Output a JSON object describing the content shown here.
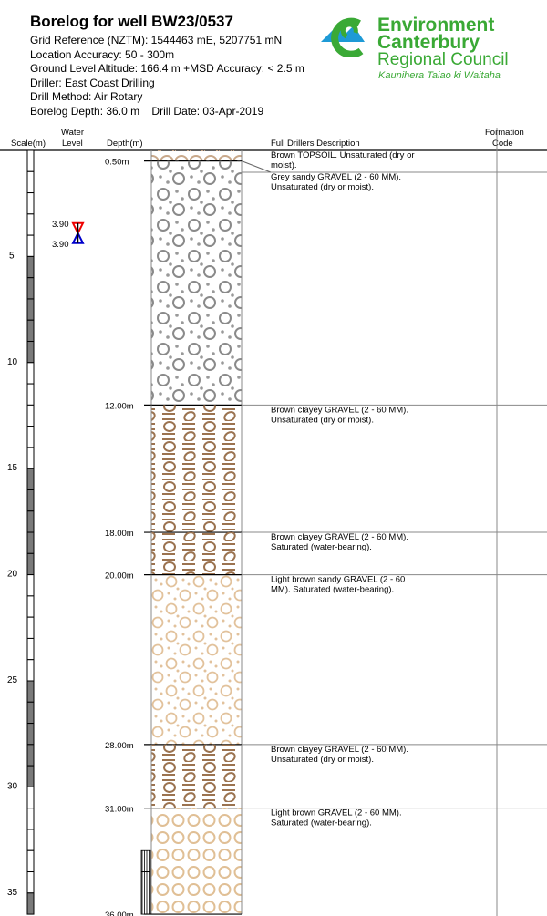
{
  "header": {
    "title": "Borelog for well BW23/0537",
    "grid_reference": "Grid Reference (NZTM):  1544463 mE, 5207751 mN",
    "location_accuracy": "Location Accuracy:  50 - 300m",
    "ground_level": "Ground Level Altitude:  166.4 m +MSD Accuracy: < 2.5 m",
    "driller": "Driller:  East Coast Drilling",
    "drill_method": "Drill Method:  Air Rotary",
    "borelog_depth": "Borelog Depth:  36.0 m",
    "drill_date": "Drill Date:  03-Apr-2019"
  },
  "logo": {
    "line1": "Environment",
    "line2": "Canterbury",
    "line3": "Regional Council",
    "tagline": "Kaunihera Taiao ki Waitaha",
    "green": "#3aa935",
    "blue": "#1e9ad6"
  },
  "columns": {
    "scale": "Scale(m)",
    "water_level_1": "Water",
    "water_level_2": "Level",
    "depth": "Depth(m)",
    "description": "Full Drillers Description",
    "formation_1": "Formation",
    "formation_2": "Code"
  },
  "scale_labels": [
    "5",
    "10",
    "15",
    "20",
    "25",
    "30",
    "35"
  ],
  "water_level": {
    "top": "3.90",
    "bottom": "3.90",
    "depth_m": 3.9
  },
  "screen": {
    "from_m": 33,
    "to_m": 36
  },
  "layers": [
    {
      "bottom_label": "0.50m",
      "top_m": 0,
      "bottom_m": 0.5,
      "pattern": "topsoil",
      "desc": [
        "Brown TOPSOIL. Unsaturated (dry or",
        "moist)."
      ]
    },
    {
      "bottom_label": "12.00m",
      "top_m": 0.5,
      "bottom_m": 12,
      "pattern": "grey-sandy-gravel",
      "desc": [
        "Grey sandy GRAVEL (2 - 60 MM).",
        "Unsaturated (dry or moist)."
      ]
    },
    {
      "bottom_label": "18.00m",
      "top_m": 12,
      "bottom_m": 18,
      "pattern": "brown-clayey-gravel",
      "desc": [
        "Brown clayey GRAVEL (2 - 60 MM).",
        "Unsaturated (dry or moist)."
      ]
    },
    {
      "bottom_label": "20.00m",
      "top_m": 18,
      "bottom_m": 20,
      "pattern": "brown-clayey-gravel",
      "desc": [
        "Brown clayey GRAVEL (2 - 60 MM).",
        "Saturated (water-bearing)."
      ]
    },
    {
      "bottom_label": "28.00m",
      "top_m": 20,
      "bottom_m": 28,
      "pattern": "light-brown-sandy-gravel",
      "desc": [
        "Light brown sandy GRAVEL (2 - 60",
        "MM). Saturated (water-bearing)."
      ]
    },
    {
      "bottom_label": "31.00m",
      "top_m": 28,
      "bottom_m": 31,
      "pattern": "brown-clayey-gravel",
      "desc": [
        "Brown clayey GRAVEL (2 - 60 MM).",
        "Unsaturated (dry or moist)."
      ]
    },
    {
      "bottom_label": "36.00m",
      "top_m": 31,
      "bottom_m": 36,
      "pattern": "light-brown-gravel",
      "desc": [
        "Light brown GRAVEL (2 - 60 MM).",
        "Saturated (water-bearing)."
      ]
    }
  ]
}
